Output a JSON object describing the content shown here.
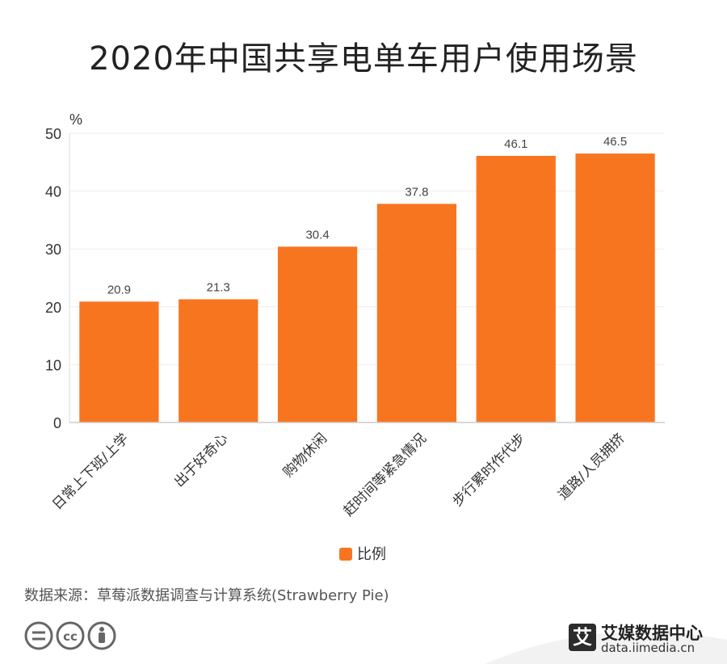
{
  "title": "2020年中国共享电单车用户使用场景",
  "source": "数据来源：草莓派数据调查与计算系统(Strawberry Pie)",
  "brand": {
    "mark": "艾",
    "name": "艾媒数据中心",
    "url": "data.iimedia.cn"
  },
  "license_icons": [
    "equals-icon",
    "cc-icon",
    "person-icon"
  ],
  "colors": {
    "bar": "#f87520",
    "grid": "#eeeeee",
    "axis": "#cccccc",
    "text": "#333333"
  },
  "chart_data": {
    "type": "bar",
    "categories": [
      "日常上下班/上学",
      "出于好奇心",
      "购物休闲",
      "赶时间等紧急情况",
      "步行累时作代步",
      "道路/人员拥挤"
    ],
    "series": [
      {
        "name": "比例",
        "values": [
          20.9,
          21.3,
          30.4,
          37.8,
          46.1,
          46.5
        ]
      }
    ],
    "ylabel": "%",
    "ylim": [
      0,
      50
    ],
    "yticks": [
      0,
      10,
      20,
      30,
      40,
      50
    ],
    "grid": true,
    "legend": "bottom-center",
    "data_labels": [
      "20.9",
      "21.3",
      "30.4",
      "37.8",
      "46.1",
      "46.5"
    ]
  }
}
